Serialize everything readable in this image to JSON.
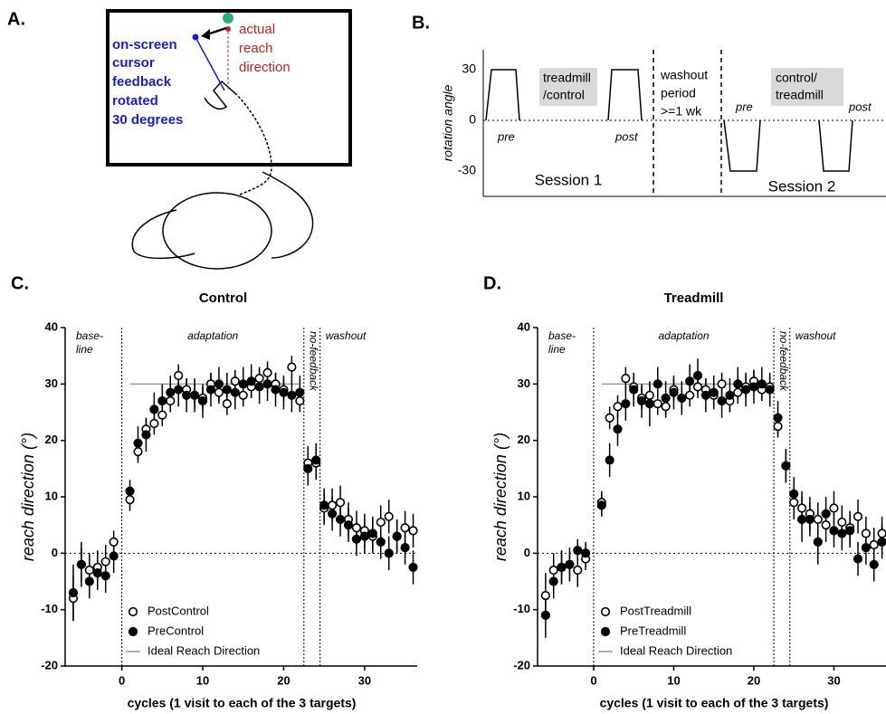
{
  "panels": {
    "a": {
      "label": "A.",
      "cursor_text": [
        "on-screen",
        "cursor",
        "feedback",
        "rotated",
        "30 degrees"
      ],
      "reach_text": [
        "actual",
        "reach",
        "direction"
      ]
    },
    "b": {
      "label": "B.",
      "y_label": "rotation angle",
      "yticks": [
        30,
        0,
        -30
      ],
      "box1": [
        "treadmill",
        "/control"
      ],
      "washout": [
        "washout",
        "period",
        ">=1 wk"
      ],
      "box2": [
        "control/",
        "treadmill"
      ],
      "pre1": "pre",
      "post1": "post",
      "pre2": "pre",
      "post2": "post",
      "session1": "Session 1",
      "session2": "Session 2"
    }
  },
  "chart_data": [
    {
      "type": "scatter",
      "panel_label": "C.",
      "title": "Control",
      "x_label": "cycles (1 visit to each of the 3 targets)",
      "y_label": "reach direction (°)",
      "phases": [
        [
          "base-",
          "line"
        ],
        [
          "adaptation"
        ],
        [
          "no-feedback"
        ],
        [
          "washout"
        ]
      ],
      "dividers": [
        0,
        22.5,
        24.5
      ],
      "xlim": [
        -7,
        36.5
      ],
      "ylim": [
        -20,
        40
      ],
      "xticks": [
        0,
        10,
        20,
        30
      ],
      "yticks": [
        -20,
        -10,
        0,
        10,
        20,
        30,
        40
      ],
      "x": [
        -6,
        -5,
        -4,
        -3,
        -2,
        -1,
        1,
        2,
        3,
        4,
        5,
        6,
        7,
        8,
        9,
        10,
        11,
        12,
        13,
        14,
        15,
        16,
        17,
        18,
        19,
        20,
        21,
        22,
        23,
        24,
        25,
        26,
        27,
        28,
        29,
        30,
        31,
        32,
        33,
        34,
        35,
        36
      ],
      "series": [
        {
          "name": "PostControl",
          "color": "#000000",
          "filled": false,
          "values": [
            -8,
            -2,
            -3,
            -2.5,
            -1.5,
            2,
            9.5,
            18,
            22,
            23,
            24.5,
            27,
            31.5,
            29,
            28,
            27.5,
            30,
            28.5,
            26.5,
            30.5,
            28,
            29.5,
            31,
            32,
            30,
            29,
            33,
            27,
            16,
            16,
            8,
            8.5,
            9,
            6,
            4.5,
            4,
            3,
            5.5,
            6.5,
            3,
            4.5,
            4
          ],
          "errors": [
            4,
            3,
            3,
            3,
            3,
            2,
            2,
            2,
            2,
            2,
            2,
            2,
            2,
            2,
            2,
            2,
            2,
            2,
            2,
            2,
            2,
            2,
            2,
            2,
            2,
            2,
            2,
            2,
            3,
            3,
            3,
            3,
            3,
            3,
            3,
            3,
            3,
            3,
            3,
            3,
            3,
            3
          ]
        },
        {
          "name": "PreControl",
          "color": "#000000",
          "filled": true,
          "values": [
            -7,
            -2,
            -5,
            -3.5,
            -4,
            -0.5,
            11,
            19.5,
            21,
            25.5,
            27,
            28.5,
            29,
            28,
            28,
            27,
            29,
            30,
            29,
            28.5,
            30,
            30.5,
            29.5,
            30,
            29,
            28.5,
            28,
            28.5,
            15,
            16.5,
            8.5,
            7,
            6,
            5,
            2.5,
            3,
            3.5,
            2,
            0,
            3,
            1,
            -2.5
          ],
          "errors": [
            5,
            4,
            3,
            3,
            3,
            3,
            2,
            3,
            3,
            3,
            3,
            3,
            3,
            3,
            3,
            3,
            3,
            3,
            3,
            3,
            3,
            3,
            3,
            3,
            3,
            3,
            3,
            3,
            3,
            3,
            3,
            3,
            3,
            3,
            3,
            3,
            3,
            3,
            3,
            3,
            3,
            3
          ]
        }
      ],
      "reference": {
        "name": "Ideal Reach Direction",
        "color": "#999999",
        "value": 30,
        "x": [
          1,
          22
        ]
      },
      "legend": "lower left"
    },
    {
      "type": "scatter",
      "panel_label": "D.",
      "title": "Treadmill",
      "x_label": "cycles (1 visit to each of the 3 targets)",
      "y_label": "reach direction (°)",
      "phases": [
        [
          "base-",
          "line"
        ],
        [
          "adaptation"
        ],
        [
          "no-feedback"
        ],
        [
          "washout"
        ]
      ],
      "dividers": [
        0,
        22.5,
        24.5
      ],
      "xlim": [
        -7,
        36.5
      ],
      "ylim": [
        -20,
        40
      ],
      "xticks": [
        0,
        10,
        20,
        30
      ],
      "yticks": [
        -20,
        -10,
        0,
        10,
        20,
        30,
        40
      ],
      "x": [
        -6,
        -5,
        -4,
        -3,
        -2,
        -1,
        1,
        2,
        3,
        4,
        5,
        6,
        7,
        8,
        9,
        10,
        11,
        12,
        13,
        14,
        15,
        16,
        17,
        18,
        19,
        20,
        21,
        22,
        23,
        24,
        25,
        26,
        27,
        28,
        29,
        30,
        31,
        32,
        33,
        34,
        35,
        36
      ],
      "series": [
        {
          "name": "PostTreadmill",
          "color": "#000000",
          "filled": false,
          "values": [
            -7.5,
            -3,
            -2.5,
            -2,
            -3,
            -1,
            9,
            24,
            26,
            31,
            29.5,
            27.5,
            28,
            26.5,
            26,
            29,
            27.5,
            28,
            29.5,
            29,
            28,
            30,
            27,
            28.5,
            29.5,
            30.5,
            29,
            29.5,
            22.5,
            15.5,
            9,
            8,
            7,
            6,
            5,
            8,
            5.5,
            4.5,
            6.5,
            3.5,
            1.5,
            3.5
          ],
          "errors": [
            4,
            3,
            3,
            3,
            3,
            2,
            2,
            2,
            2,
            2,
            2,
            2,
            2,
            2,
            2,
            2,
            2,
            2,
            2,
            2,
            2,
            2,
            2,
            2,
            2,
            2,
            2,
            2,
            2,
            3,
            3,
            3,
            3,
            3,
            3,
            3,
            3,
            3,
            3,
            3,
            3,
            3
          ]
        },
        {
          "name": "PreTreadmill",
          "color": "#000000",
          "filled": true,
          "values": [
            -11,
            -5,
            -2.5,
            -2,
            0.5,
            0,
            8.5,
            16.5,
            22,
            26.5,
            29,
            27,
            26.5,
            30,
            27.5,
            28.5,
            27.5,
            30.5,
            31.5,
            28,
            28.5,
            27,
            28,
            30,
            29,
            29.5,
            30,
            29,
            24,
            15.5,
            10.5,
            6,
            6,
            2,
            7,
            4,
            3.5,
            4,
            -1,
            1,
            -2,
            2
          ],
          "errors": [
            4,
            3,
            3,
            2,
            2,
            2,
            2,
            3,
            3,
            3,
            3,
            3,
            4,
            3,
            3,
            3,
            3,
            3,
            3,
            3,
            3,
            3,
            3,
            3,
            3,
            3,
            3,
            3,
            3,
            3,
            3,
            4,
            3,
            4,
            3,
            3,
            3,
            3,
            3,
            3,
            3,
            3
          ]
        }
      ],
      "reference": {
        "name": "Ideal Reach Direction",
        "color": "#999999",
        "value": 30,
        "x": [
          1,
          22
        ]
      },
      "legend": "lower left"
    }
  ]
}
